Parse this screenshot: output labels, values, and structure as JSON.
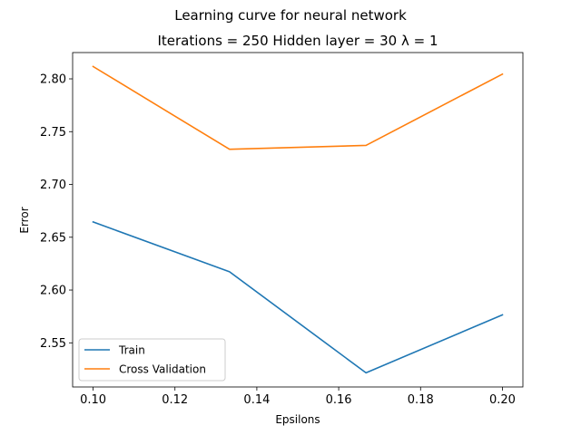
{
  "chart_data": {
    "type": "line",
    "suptitle": "Learning curve for neural network",
    "title": "Iterations = 250 Hidden layer = 30 λ = 1",
    "xlabel": "Epsilons",
    "ylabel": "Error",
    "x": [
      0.1,
      0.13333,
      0.16667,
      0.2
    ],
    "xlim": [
      0.095,
      0.205
    ],
    "ylim": [
      2.5082,
      2.8249
    ],
    "xticks": [
      0.1,
      0.12,
      0.14,
      0.16,
      0.18,
      0.2
    ],
    "xtick_labels": [
      "0.10",
      "0.12",
      "0.14",
      "0.16",
      "0.18",
      "0.20"
    ],
    "yticks": [
      2.55,
      2.6,
      2.65,
      2.7,
      2.75,
      2.8
    ],
    "ytick_labels": [
      "2.55",
      "2.60",
      "2.65",
      "2.70",
      "2.75",
      "2.80"
    ],
    "grid": false,
    "legend_position": "lower-left",
    "series": [
      {
        "name": "Train",
        "color": "#1f77b4",
        "values": [
          2.6645,
          2.6173,
          2.5216,
          2.5765
        ]
      },
      {
        "name": "Cross Validation",
        "color": "#ff7f0e",
        "values": [
          2.8117,
          2.7333,
          2.737,
          2.8045
        ]
      }
    ]
  }
}
